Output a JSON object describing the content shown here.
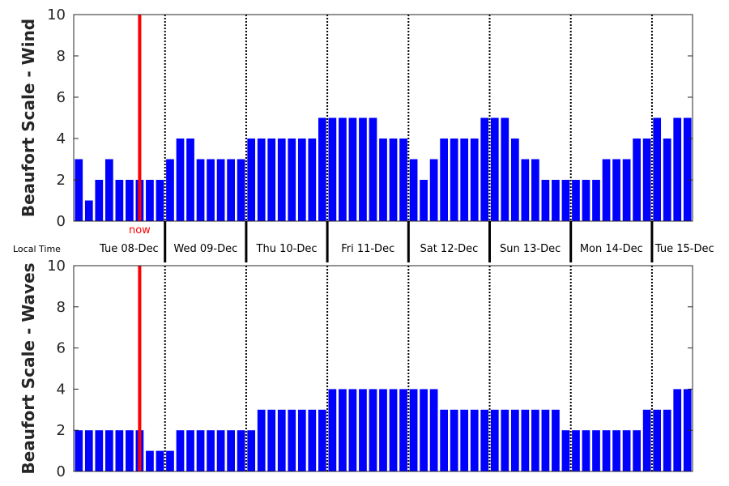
{
  "chart_data": [
    {
      "type": "bar",
      "ylabel": "Beaufort Scale - Wind",
      "ylim": [
        0,
        10
      ],
      "yticks": [
        0,
        2,
        4,
        6,
        8,
        10
      ],
      "color": "#0000ff",
      "interval_hours": 3,
      "values": [
        3,
        1,
        2,
        3,
        2,
        2,
        2,
        2,
        2,
        3,
        4,
        4,
        3,
        3,
        3,
        3,
        3,
        4,
        4,
        4,
        4,
        4,
        4,
        4,
        5,
        5,
        5,
        5,
        5,
        5,
        4,
        4,
        4,
        3,
        2,
        3,
        4,
        4,
        4,
        4,
        5,
        5,
        5,
        4,
        3,
        3,
        2,
        2,
        2,
        2,
        2,
        2,
        3,
        3,
        3,
        4,
        4,
        5,
        4,
        5,
        5
      ]
    },
    {
      "type": "bar",
      "ylabel": "Beaufort Scale - Waves",
      "ylim": [
        0,
        10
      ],
      "yticks": [
        0,
        2,
        4,
        6,
        8,
        10
      ],
      "color": "#0000ff",
      "interval_hours": 3,
      "values": [
        2,
        2,
        2,
        2,
        2,
        2,
        2,
        1,
        1,
        1,
        2,
        2,
        2,
        2,
        2,
        2,
        2,
        2,
        3,
        3,
        3,
        3,
        3,
        3,
        3,
        4,
        4,
        4,
        4,
        4,
        4,
        4,
        4,
        4,
        4,
        4,
        3,
        3,
        3,
        3,
        3,
        3,
        3,
        3,
        3,
        3,
        3,
        3,
        2,
        2,
        2,
        2,
        2,
        2,
        2,
        2,
        3,
        3,
        3,
        4,
        4
      ]
    }
  ],
  "time_axis": {
    "label": "Local Time",
    "days": [
      "Tue 08-Dec",
      "Wed 09-Dec",
      "Thu 10-Dec",
      "Fri 11-Dec",
      "Sat 12-Dec",
      "Sun 13-Dec",
      "Mon 14-Dec",
      "Tue 15-Dec"
    ],
    "day_boundaries_bar_index": [
      9,
      17,
      25,
      33,
      41,
      49,
      57
    ],
    "first_bar_hour_of_day": 3
  },
  "now_marker": {
    "label": "now",
    "bar_position": 6.5,
    "color": "#ff0000"
  }
}
